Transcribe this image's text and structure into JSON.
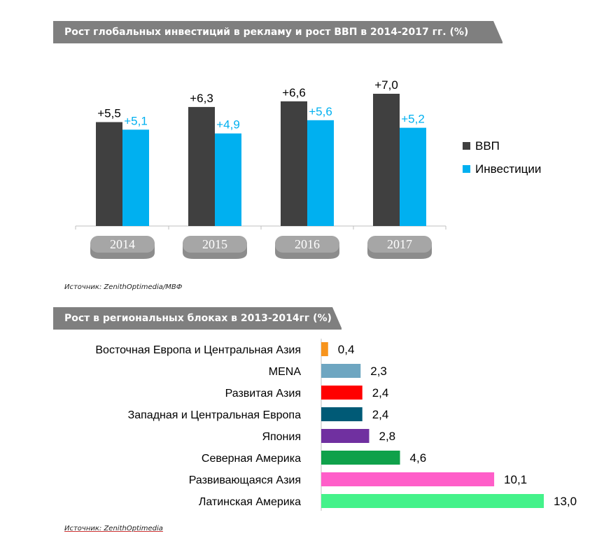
{
  "chart1": {
    "title": "Рост глобальных инвестиций в рекламу и рост ВВП в 2014-2017 гг. (%)",
    "source": "Источник: ZenithOptimedia/МВФ"
  },
  "chart2": {
    "title": "Рост в региональных блоках в 2013-2014гг (%)",
    "source": "Источник: ZenithOptimedia"
  },
  "chart_data": [
    {
      "type": "bar",
      "title": "Рост глобальных инвестиций в рекламу и рост ВВП в 2014-2017 гг. (%)",
      "categories": [
        "2014",
        "2015",
        "2016",
        "2017"
      ],
      "series": [
        {
          "name": "ВВП",
          "values": [
            5.5,
            6.3,
            6.6,
            7.0
          ],
          "labels": [
            "+5,5",
            "+6,3",
            "+6,6",
            "+7,0"
          ],
          "color": "#404040"
        },
        {
          "name": "Инвестиции",
          "values": [
            5.1,
            4.9,
            5.6,
            5.2
          ],
          "labels": [
            "+5,1",
            "+4,9",
            "+5,6",
            "+5,2"
          ],
          "color": "#00b0f0"
        }
      ],
      "ylim": [
        0,
        7.0
      ],
      "grid": false,
      "legend": "right"
    },
    {
      "type": "bar",
      "orientation": "horizontal",
      "title": "Рост в региональных блоках в 2013-2014гг (%)",
      "categories": [
        "Восточная Европа и Центральная Азия",
        "MENA",
        "Развитая Азия",
        "Западная и Центральная Европа",
        "Япония",
        "Северная Америка",
        "Развивающаяся Азия",
        "Латинская Америка"
      ],
      "values": [
        0.4,
        2.3,
        2.4,
        2.4,
        2.8,
        4.6,
        10.1,
        13.0
      ],
      "labels": [
        "0,4",
        "2,3",
        "2,4",
        "2,4",
        "2,8",
        "4,6",
        "10,1",
        "13,0"
      ],
      "colors": [
        "#f7941d",
        "#6ea6c1",
        "#ff0000",
        "#005a76",
        "#7030a0",
        "#0fa14a",
        "#ff5ec9",
        "#44f28a"
      ],
      "xlim": [
        0,
        13.0
      ],
      "grid": false
    }
  ]
}
